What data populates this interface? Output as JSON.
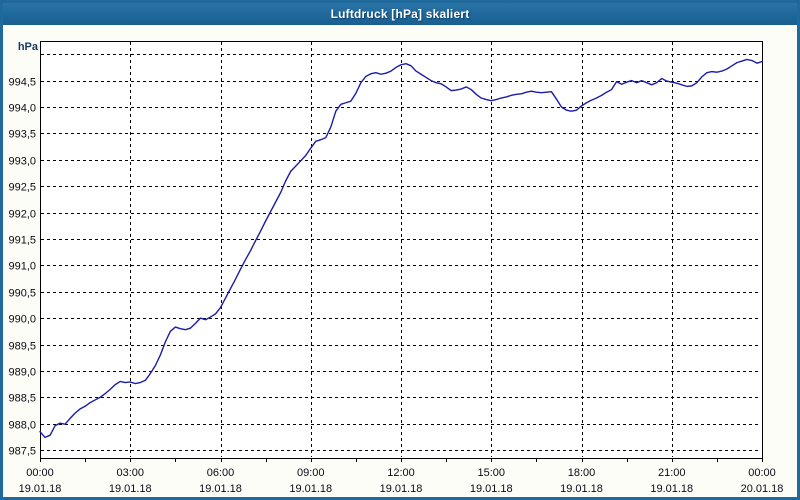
{
  "window": {
    "title": "Luftdruck [hPa] skaliert"
  },
  "colors": {
    "title_bar": "#20699c",
    "window_border": "#20699c",
    "background": "#fdfdf8",
    "plot_background": "#ffffff",
    "line": "#1c1caa",
    "grid": "#000000",
    "axis": "#000000",
    "tick_label": "#0a0a14",
    "unit_label": "#14395f"
  },
  "chart_data": {
    "type": "line",
    "title": "Luftdruck [hPa] skaliert",
    "ylabel": "hPa",
    "unit_label": "hPa",
    "grid": "dashed",
    "legend_position": "none",
    "x_range_hours": [
      0,
      24
    ],
    "x_minor_tick_step_hours": 1.5,
    "ylim": [
      987.35,
      995.25
    ],
    "x_ticks": [
      {
        "hour": 0,
        "time": "00:00",
        "date": "19.01.18"
      },
      {
        "hour": 3,
        "time": "03:00",
        "date": "19.01.18"
      },
      {
        "hour": 6,
        "time": "06:00",
        "date": "19.01.18"
      },
      {
        "hour": 9,
        "time": "09:00",
        "date": "19.01.18"
      },
      {
        "hour": 12,
        "time": "12:00",
        "date": "19.01.18"
      },
      {
        "hour": 15,
        "time": "15:00",
        "date": "19.01.18"
      },
      {
        "hour": 18,
        "time": "18:00",
        "date": "19.01.18"
      },
      {
        "hour": 21,
        "time": "21:00",
        "date": "19.01.18"
      },
      {
        "hour": 24,
        "time": "00:00",
        "date": "20.01.18"
      }
    ],
    "y_ticks": [
      {
        "value": 987.5,
        "label": "987,5"
      },
      {
        "value": 988.0,
        "label": "988,0"
      },
      {
        "value": 988.5,
        "label": "988,5"
      },
      {
        "value": 989.0,
        "label": "989,0"
      },
      {
        "value": 989.5,
        "label": "989,5"
      },
      {
        "value": 990.0,
        "label": "990,0"
      },
      {
        "value": 990.5,
        "label": "990,5"
      },
      {
        "value": 991.0,
        "label": "991,0"
      },
      {
        "value": 991.5,
        "label": "991,5"
      },
      {
        "value": 992.0,
        "label": "992,0"
      },
      {
        "value": 992.5,
        "label": "992,5"
      },
      {
        "value": 993.0,
        "label": "993,0"
      },
      {
        "value": 993.5,
        "label": "993,5"
      },
      {
        "value": 994.0,
        "label": "994,0"
      },
      {
        "value": 994.5,
        "label": "994,5"
      },
      {
        "value": 995.0,
        "label": ""
      }
    ],
    "series": [
      {
        "name": "Luftdruck",
        "start_hour": 0,
        "interval_minutes": 10,
        "values": [
          987.85,
          987.74,
          987.78,
          987.96,
          988.01,
          987.99,
          988.1,
          988.2,
          988.28,
          988.33,
          988.4,
          988.45,
          988.5,
          988.57,
          988.65,
          988.74,
          988.8,
          988.78,
          988.79,
          988.76,
          988.78,
          988.82,
          988.95,
          989.1,
          989.3,
          989.55,
          989.75,
          989.83,
          989.8,
          989.78,
          989.81,
          989.9,
          990.0,
          989.97,
          990.02,
          990.08,
          990.2,
          990.38,
          990.56,
          990.74,
          990.93,
          991.11,
          991.28,
          991.47,
          991.65,
          991.84,
          992.02,
          992.2,
          992.38,
          992.6,
          992.78,
          992.88,
          992.98,
          993.08,
          993.22,
          993.35,
          993.38,
          993.42,
          993.62,
          993.92,
          994.05,
          994.08,
          994.11,
          994.26,
          994.46,
          994.58,
          994.63,
          994.65,
          994.62,
          994.64,
          994.68,
          994.75,
          994.8,
          994.82,
          994.78,
          994.68,
          994.62,
          994.56,
          994.5,
          994.46,
          994.44,
          994.38,
          994.31,
          994.32,
          994.34,
          994.38,
          994.33,
          994.24,
          994.17,
          994.14,
          994.12,
          994.14,
          994.17,
          994.19,
          994.22,
          994.24,
          994.25,
          994.28,
          994.3,
          994.28,
          994.27,
          994.28,
          994.29,
          994.15,
          994.0,
          993.94,
          993.92,
          993.94,
          994.02,
          994.08,
          994.13,
          994.17,
          994.22,
          994.28,
          994.33,
          994.48,
          994.43,
          994.47,
          994.5,
          994.46,
          994.5,
          994.46,
          994.42,
          994.46,
          994.54,
          994.49,
          994.47,
          994.45,
          994.42,
          994.39,
          994.4,
          994.46,
          994.57,
          994.65,
          994.67,
          994.66,
          994.68,
          994.72,
          994.78,
          994.84,
          994.87,
          994.9,
          994.88,
          994.83,
          994.86
        ]
      }
    ]
  }
}
